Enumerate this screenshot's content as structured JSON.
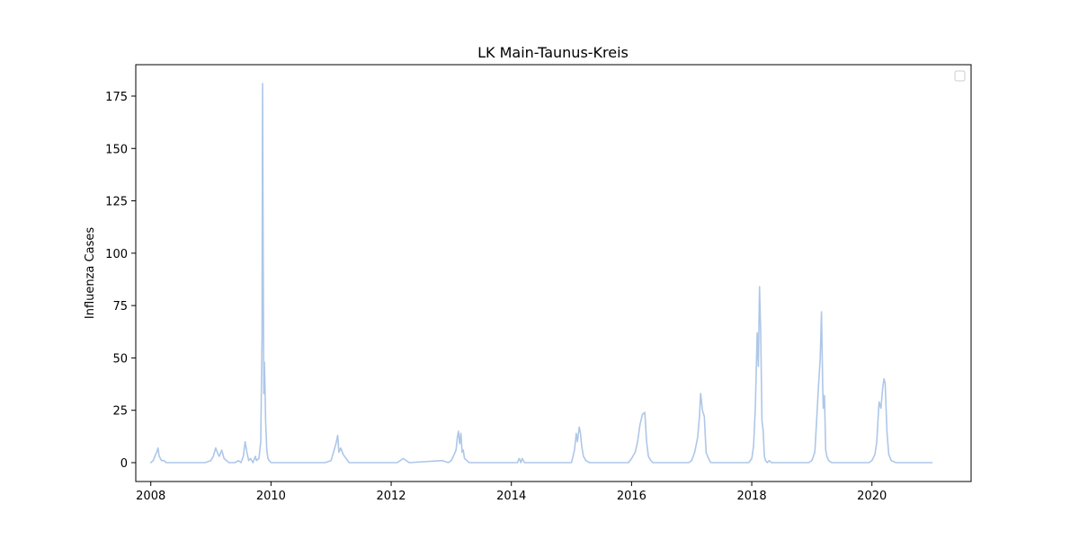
{
  "chart_data": {
    "type": "line",
    "title": "LK Main-Taunus-Kreis",
    "xlabel": "",
    "ylabel": "Influenza Cases",
    "xlim": [
      2007.75,
      2021.65
    ],
    "ylim": [
      -9,
      190
    ],
    "x_ticks": [
      2008,
      2010,
      2012,
      2014,
      2016,
      2018,
      2020
    ],
    "y_ticks": [
      0,
      25,
      50,
      75,
      100,
      125,
      150,
      175
    ],
    "grid": false,
    "legend": "top-right (empty)",
    "line_color": "#aec7e8",
    "series": [
      {
        "x": [
          2008.0,
          2008.04,
          2008.08,
          2008.1,
          2008.12,
          2008.14,
          2008.16,
          2008.18,
          2008.22,
          2008.26,
          2008.3,
          2008.5,
          2008.9,
          2009.0,
          2009.04,
          2009.08,
          2009.12,
          2009.14,
          2009.18,
          2009.22,
          2009.3,
          2009.4,
          2009.46,
          2009.5,
          2009.54,
          2009.57,
          2009.6,
          2009.63,
          2009.66,
          2009.7,
          2009.74,
          2009.76,
          2009.8,
          2009.83,
          2009.85,
          2009.86,
          2009.87,
          2009.88,
          2009.89,
          2009.9,
          2009.91,
          2009.93,
          2009.95,
          2009.97,
          2010.0,
          2010.05,
          2010.3,
          2010.9,
          2011.0,
          2011.04,
          2011.08,
          2011.11,
          2011.13,
          2011.16,
          2011.2,
          2011.25,
          2011.3,
          2011.8,
          2012.1,
          2012.15,
          2012.2,
          2012.3,
          2012.85,
          2012.95,
          2013.0,
          2013.05,
          2013.08,
          2013.1,
          2013.12,
          2013.14,
          2013.16,
          2013.18,
          2013.2,
          2013.22,
          2013.26,
          2013.3,
          2014.1,
          2014.13,
          2014.16,
          2014.18,
          2014.22,
          2015.0,
          2015.05,
          2015.08,
          2015.1,
          2015.13,
          2015.15,
          2015.17,
          2015.2,
          2015.24,
          2015.3,
          2015.95,
          2016.0,
          2016.06,
          2016.1,
          2016.14,
          2016.18,
          2016.22,
          2016.25,
          2016.28,
          2016.32,
          2016.36,
          2016.95,
          2017.0,
          2017.05,
          2017.1,
          2017.13,
          2017.15,
          2017.18,
          2017.21,
          2017.24,
          2017.28,
          2017.32,
          2017.95,
          2018.0,
          2018.03,
          2018.06,
          2018.09,
          2018.11,
          2018.13,
          2018.15,
          2018.17,
          2018.19,
          2018.21,
          2018.23,
          2018.26,
          2018.29,
          2018.33,
          2018.95,
          2019.0,
          2019.05,
          2019.08,
          2019.11,
          2019.14,
          2019.16,
          2019.18,
          2019.19,
          2019.21,
          2019.23,
          2019.25,
          2019.28,
          2019.33,
          2019.95,
          2020.0,
          2020.05,
          2020.08,
          2020.1,
          2020.12,
          2020.15,
          2020.18,
          2020.2,
          2020.22,
          2020.25,
          2020.28,
          2020.32,
          2020.4,
          2021.0
        ],
        "y": [
          0,
          1,
          4,
          5,
          7,
          3,
          2,
          1,
          1,
          0,
          0,
          0,
          0,
          1,
          3,
          7,
          4,
          3,
          6,
          2,
          0,
          0,
          1,
          0,
          3,
          10,
          5,
          1,
          2,
          0,
          3,
          1,
          2,
          10,
          60,
          181,
          100,
          33,
          48,
          37,
          20,
          6,
          2,
          1,
          0,
          0,
          0,
          0,
          1,
          5,
          9,
          13,
          5,
          7,
          4,
          2,
          0,
          0,
          0,
          1,
          2,
          0,
          1,
          0,
          1,
          4,
          6,
          12,
          15,
          9,
          14,
          5,
          6,
          2,
          1,
          0,
          0,
          2,
          0,
          2,
          0,
          0,
          6,
          14,
          10,
          17,
          14,
          8,
          3,
          1,
          0,
          0,
          2,
          5,
          10,
          18,
          23,
          24,
          10,
          3,
          1,
          0,
          0,
          1,
          5,
          12,
          22,
          33,
          25,
          22,
          5,
          2,
          0,
          0,
          2,
          8,
          27,
          62,
          46,
          84,
          60,
          20,
          15,
          3,
          1,
          0,
          1,
          0,
          0,
          1,
          5,
          20,
          36,
          50,
          72,
          38,
          26,
          32,
          6,
          3,
          1,
          0,
          0,
          1,
          4,
          10,
          20,
          29,
          26,
          36,
          40,
          38,
          15,
          4,
          1,
          0,
          0
        ]
      }
    ]
  }
}
